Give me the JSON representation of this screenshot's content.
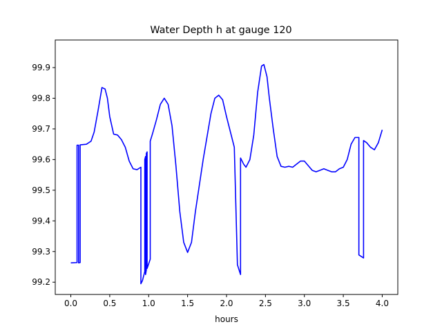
{
  "chart_data": {
    "type": "line",
    "title": "Water Depth h at gauge 120",
    "xlabel": "hours",
    "ylabel": "",
    "xlim": [
      -0.2,
      4.2
    ],
    "ylim": [
      99.16,
      99.99
    ],
    "xticks": [
      0.0,
      0.5,
      1.0,
      1.5,
      2.0,
      2.5,
      3.0,
      3.5,
      4.0
    ],
    "xtick_labels": [
      "0.0",
      "0.5",
      "1.0",
      "1.5",
      "2.0",
      "2.5",
      "3.0",
      "3.5",
      "4.0"
    ],
    "yticks": [
      99.2,
      99.3,
      99.4,
      99.5,
      99.6,
      99.7,
      99.8,
      99.9
    ],
    "ytick_labels": [
      "99.2",
      "99.3",
      "99.4",
      "99.5",
      "99.6",
      "99.7",
      "99.8",
      "99.9"
    ],
    "grid": false,
    "series": [
      {
        "color": "#0000ff",
        "x": [
          0.0,
          0.08,
          0.08,
          0.1,
          0.1,
          0.12,
          0.12,
          0.2,
          0.26,
          0.3,
          0.35,
          0.4,
          0.44,
          0.47,
          0.5,
          0.55,
          0.6,
          0.65,
          0.7,
          0.75,
          0.8,
          0.85,
          0.9,
          0.9,
          0.92,
          0.95,
          0.95,
          0.96,
          0.96,
          0.97,
          0.97,
          0.98,
          0.98,
          1.02,
          1.02,
          1.05,
          1.1,
          1.15,
          1.2,
          1.25,
          1.3,
          1.35,
          1.4,
          1.45,
          1.5,
          1.55,
          1.6,
          1.7,
          1.8,
          1.85,
          1.9,
          1.95,
          2.0,
          2.05,
          2.1,
          2.14,
          2.14,
          2.18,
          2.18,
          2.22,
          2.25,
          2.3,
          2.35,
          2.4,
          2.45,
          2.48,
          2.52,
          2.55,
          2.6,
          2.65,
          2.7,
          2.75,
          2.8,
          2.85,
          2.9,
          2.95,
          3.0,
          3.05,
          3.1,
          3.15,
          3.2,
          3.25,
          3.3,
          3.35,
          3.4,
          3.45,
          3.5,
          3.55,
          3.6,
          3.65,
          3.7,
          3.7,
          3.76,
          3.76,
          3.8,
          3.85,
          3.9,
          3.95,
          4.0
        ],
        "y": [
          99.263,
          99.264,
          99.647,
          99.647,
          99.263,
          99.264,
          99.648,
          99.65,
          99.66,
          99.69,
          99.76,
          99.835,
          99.83,
          99.8,
          99.74,
          99.683,
          99.68,
          99.665,
          99.64,
          99.595,
          99.57,
          99.567,
          99.575,
          99.195,
          99.205,
          99.235,
          99.6,
          99.61,
          99.225,
          99.24,
          99.62,
          99.625,
          99.245,
          99.275,
          99.66,
          99.685,
          99.73,
          99.78,
          99.8,
          99.78,
          99.71,
          99.58,
          99.43,
          99.33,
          99.297,
          99.33,
          99.43,
          99.6,
          99.75,
          99.8,
          99.81,
          99.795,
          99.74,
          99.69,
          99.64,
          99.257,
          99.257,
          99.225,
          99.605,
          99.585,
          99.575,
          99.6,
          99.68,
          99.82,
          99.905,
          99.91,
          99.87,
          99.8,
          99.7,
          99.61,
          99.578,
          99.575,
          99.578,
          99.575,
          99.585,
          99.595,
          99.595,
          99.58,
          99.565,
          99.56,
          99.565,
          99.57,
          99.565,
          99.56,
          99.56,
          99.57,
          99.575,
          99.6,
          99.65,
          99.672,
          99.672,
          99.289,
          99.279,
          99.662,
          99.655,
          99.64,
          99.632,
          99.655,
          99.697
        ]
      }
    ]
  }
}
